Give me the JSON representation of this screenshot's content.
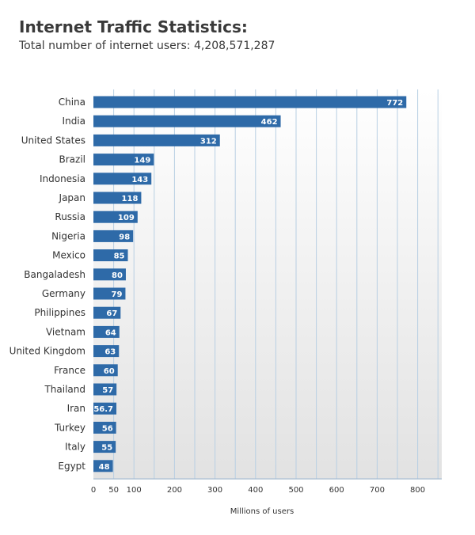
{
  "chart_data": {
    "type": "bar",
    "orientation": "horizontal",
    "title": "Internet Traffic Statistics:",
    "subtitle": "Total number of internet users: 4,208,571,287",
    "xlabel": "Millions of users",
    "ylabel": "",
    "xlim": [
      0,
      850
    ],
    "xticks": [
      0,
      50,
      100,
      200,
      300,
      400,
      500,
      600,
      700,
      800
    ],
    "grid": true,
    "categories": [
      "China",
      "India",
      "United States",
      "Brazil",
      "Indonesia",
      "Japan",
      "Russia",
      "Nigeria",
      "Mexico",
      "Bangaladesh",
      "Germany",
      "Philippines",
      "Vietnam",
      "United Kingdom",
      "France",
      "Thailand",
      "Iran",
      "Turkey",
      "Italy",
      "Egypt"
    ],
    "values": [
      772,
      462,
      312,
      149,
      143,
      118,
      109,
      98,
      85,
      80,
      79,
      67,
      64,
      63,
      60,
      57,
      56.7,
      56,
      55,
      48
    ],
    "value_labels": [
      "772",
      "462",
      "312",
      "149",
      "143",
      "118",
      "109",
      "98",
      "85",
      "80",
      "79",
      "67",
      "64",
      "63",
      "60",
      "57",
      "56.7",
      "56",
      "55",
      "48"
    ],
    "bar_color": "#2e6aa8",
    "grid_color": "#b8cfe3",
    "label_color": "#333333"
  }
}
